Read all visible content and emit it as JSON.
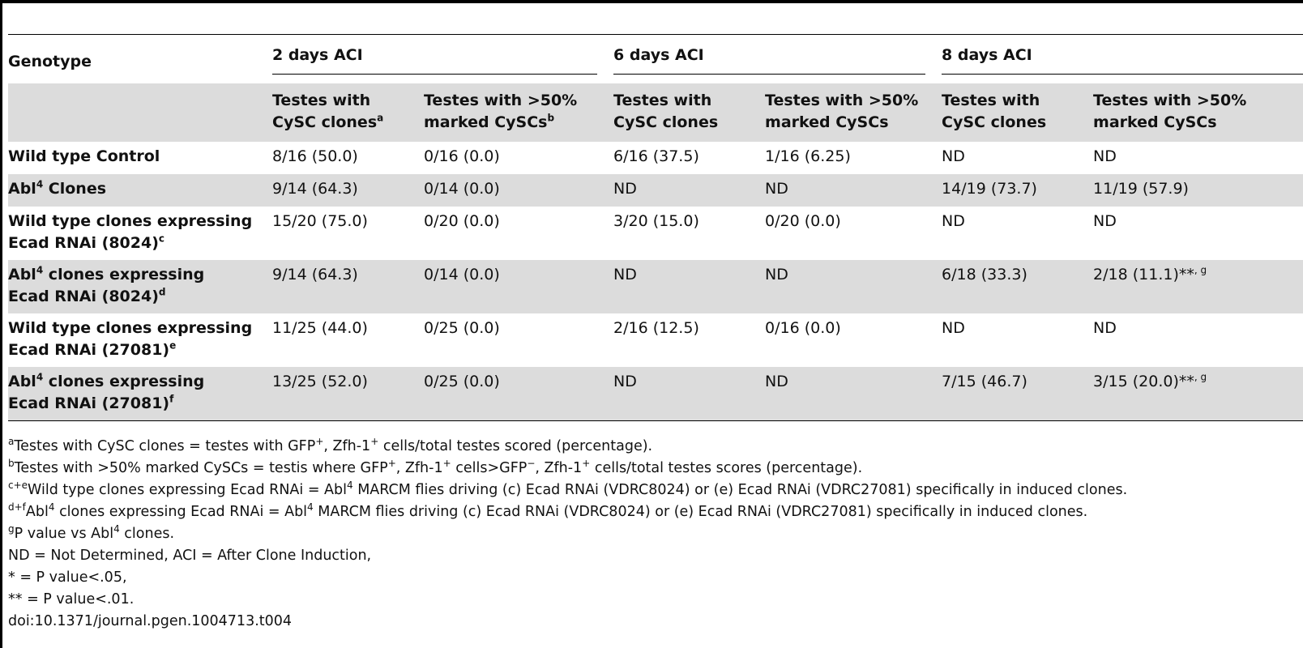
{
  "table": {
    "header": {
      "genotype": "Genotype",
      "groups": [
        "2 days ACI",
        "6 days ACI",
        "8 days ACI"
      ],
      "subheaders": [
        {
          "line1": "Testes with",
          "line2": "CySC clones",
          "sup": "a"
        },
        {
          "line1": "Testes with >50%",
          "line2": "marked CySCs",
          "sup": "b"
        },
        {
          "line1": "Testes with",
          "line2": "CySC clones",
          "sup": ""
        },
        {
          "line1": "Testes with >50%",
          "line2": "marked CySCs",
          "sup": ""
        },
        {
          "line1": "Testes with",
          "line2": "CySC clones",
          "sup": ""
        },
        {
          "line1": "Testes with >50%",
          "line2": "marked CySCs",
          "sup": ""
        }
      ]
    },
    "rows": [
      {
        "name_pre": "Wild type Control",
        "name_sup": "",
        "name_post": "",
        "name_line2": "",
        "name_line2_sup": "",
        "cells": [
          "8/16 (50.0)",
          "0/16 (0.0)",
          "6/16 (37.5)",
          "1/16 (6.25)",
          "ND",
          "ND"
        ],
        "cell_sup": ""
      },
      {
        "name_pre": "Abl",
        "name_sup": "4",
        "name_post": " Clones",
        "name_line2": "",
        "name_line2_sup": "",
        "cells": [
          "9/14 (64.3)",
          "0/14 (0.0)",
          "ND",
          "ND",
          "14/19 (73.7)",
          "11/19 (57.9)"
        ],
        "cell_sup": ""
      },
      {
        "name_pre": "Wild type clones expressing",
        "name_sup": "",
        "name_post": "",
        "name_line2": "Ecad RNAi (8024)",
        "name_line2_sup": "c",
        "cells": [
          "15/20 (75.0)",
          "0/20 (0.0)",
          "3/20 (15.0)",
          "0/20 (0.0)",
          "ND",
          "ND"
        ],
        "cell_sup": ""
      },
      {
        "name_pre": "Abl",
        "name_sup": "4",
        "name_post": " clones expressing",
        "name_line2": "Ecad RNAi (8024)",
        "name_line2_sup": "d",
        "cells": [
          "9/14 (64.3)",
          "0/14 (0.0)",
          "ND",
          "ND",
          "6/18 (33.3)",
          "2/18 (11.1)**"
        ],
        "cell_sup": ", g"
      },
      {
        "name_pre": "Wild type clones expressing",
        "name_sup": "",
        "name_post": "",
        "name_line2": "Ecad RNAi (27081)",
        "name_line2_sup": "e",
        "cells": [
          "11/25 (44.0)",
          "0/25 (0.0)",
          "2/16 (12.5)",
          "0/16 (0.0)",
          "ND",
          "ND"
        ],
        "cell_sup": ""
      },
      {
        "name_pre": "Abl",
        "name_sup": "4",
        "name_post": " clones expressing",
        "name_line2": "Ecad RNAi (27081)",
        "name_line2_sup": "f",
        "cells": [
          "13/25 (52.0)",
          "0/25 (0.0)",
          "ND",
          "ND",
          "7/15 (46.7)",
          "3/15 (20.0)**"
        ],
        "cell_sup": ", g"
      }
    ]
  },
  "footnotes": {
    "a": {
      "sup": "a",
      "t1": "Testes with CySC clones = testes with GFP",
      "s1": "+",
      "t2": ", Zfh-1",
      "s2": "+",
      "t3": " cells/total testes scored (percentage)."
    },
    "b": {
      "sup": "b",
      "t1": "Testes with >50% marked CySCs = testis where GFP",
      "s1": "+",
      "t2": ", Zfh-1",
      "s2": "+",
      "t3": " cells>GFP",
      "s3": "−",
      "t4": ", Zfh-1",
      "s4": "+",
      "t5": " cells/total testes scores (percentage)."
    },
    "ce": {
      "sup": "c+e",
      "t1": "Wild type clones expressing Ecad RNAi = Abl",
      "s1": "4",
      "t2": " MARCM flies driving (c) Ecad RNAi (VDRC8024) or (e) Ecad RNAi (VDRC27081) specifically in induced clones."
    },
    "df": {
      "sup": "d+f",
      "t1": "Abl",
      "s1": "4",
      "t2": " clones expressing Ecad RNAi = Abl",
      "s2": "4",
      "t3": " MARCM flies driving (c) Ecad RNAi (VDRC8024) or (e) Ecad RNAi (VDRC27081) specifically in induced clones."
    },
    "g": {
      "sup": "g",
      "t1": "P value vs Abl",
      "s1": "4",
      "t2": " clones."
    },
    "nd": "ND = Not Determined, ACI = After Clone Induction,",
    "star1": "* = P value<.05,",
    "star2": "** = P value<.01.",
    "doi": "doi:10.1371/journal.pgen.1004713.t004"
  }
}
